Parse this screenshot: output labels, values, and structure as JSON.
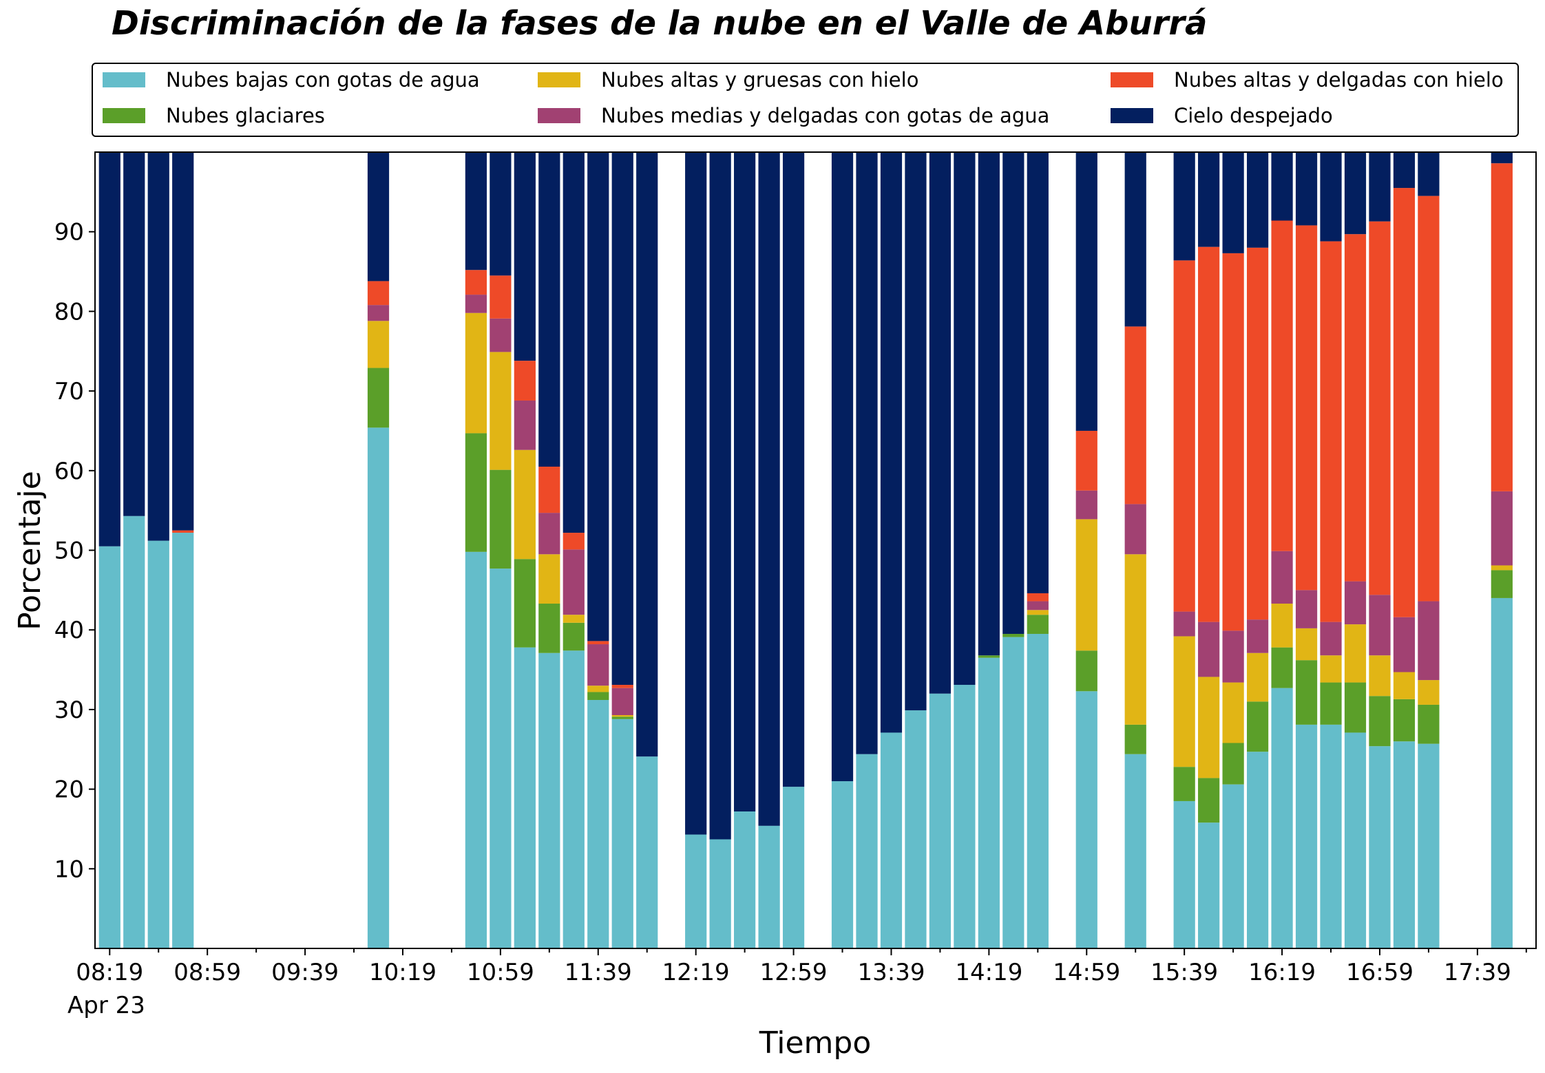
{
  "chart_data": {
    "type": "bar",
    "stacked": true,
    "title": "Discriminación de la fases de la nube en el Valle de Aburrá",
    "xlabel": "Tiempo",
    "ylabel": "Porcentaje",
    "ylim": [
      0,
      100
    ],
    "yticks": [
      10,
      20,
      30,
      40,
      50,
      60,
      70,
      80,
      90
    ],
    "xlim": [
      "08:13",
      "18:03"
    ],
    "xtick_labels": [
      "08:19",
      "08:59",
      "09:39",
      "10:19",
      "10:59",
      "11:39",
      "12:19",
      "12:59",
      "13:39",
      "14:19",
      "14:59",
      "15:39",
      "16:19",
      "16:59",
      "17:39"
    ],
    "x_date_label": "Apr 23",
    "grid": false,
    "legend_position": "top",
    "legend_columns": 3,
    "x": [
      "08:19",
      "08:29",
      "08:39",
      "08:49",
      "10:09",
      "10:49",
      "10:59",
      "11:09",
      "11:19",
      "11:29",
      "11:39",
      "11:49",
      "11:59",
      "12:19",
      "12:29",
      "12:39",
      "12:49",
      "12:59",
      "13:19",
      "13:29",
      "13:39",
      "13:49",
      "13:59",
      "14:09",
      "14:19",
      "14:29",
      "14:39",
      "14:59",
      "15:19",
      "15:39",
      "15:49",
      "15:59",
      "16:09",
      "16:19",
      "16:29",
      "16:39",
      "16:49",
      "16:59",
      "17:09",
      "17:19",
      "17:49"
    ],
    "series": [
      {
        "name": "Nubes bajas con gotas de agua",
        "color": "#64bdca",
        "values": [
          50.5,
          54.3,
          51.2,
          52.2,
          65.4,
          49.8,
          47.7,
          37.8,
          37.1,
          37.4,
          31.2,
          28.8,
          24.1,
          14.3,
          13.7,
          17.2,
          15.4,
          20.3,
          21.0,
          24.4,
          27.1,
          29.9,
          32.0,
          33.1,
          36.5,
          39.1,
          39.5,
          32.3,
          24.4,
          18.5,
          15.8,
          20.6,
          24.7,
          32.7,
          28.1,
          28.1,
          27.1,
          25.4,
          26.0,
          25.7,
          44.0
        ]
      },
      {
        "name": "Nubes glaciares",
        "color": "#5b9f29",
        "values": [
          0,
          0,
          0,
          0,
          7.5,
          14.9,
          12.4,
          11.1,
          6.2,
          3.5,
          1.0,
          0.3,
          0,
          0,
          0,
          0,
          0,
          0,
          0,
          0,
          0,
          0,
          0,
          0,
          0.3,
          0.4,
          2.4,
          5.1,
          3.7,
          4.3,
          5.6,
          5.2,
          6.3,
          5.1,
          8.1,
          5.3,
          6.3,
          6.3,
          5.3,
          4.9,
          3.5
        ]
      },
      {
        "name": "Nubes altas y gruesas con hielo",
        "color": "#e1b515",
        "values": [
          0,
          0,
          0,
          0,
          5.9,
          15.1,
          14.8,
          13.7,
          6.2,
          1.0,
          0.8,
          0.2,
          0,
          0,
          0,
          0,
          0,
          0,
          0,
          0,
          0,
          0,
          0,
          0,
          0,
          0,
          0.6,
          16.5,
          21.4,
          16.4,
          12.7,
          7.6,
          6.1,
          5.5,
          4.0,
          3.4,
          7.3,
          5.1,
          3.4,
          3.1,
          0.6
        ]
      },
      {
        "name": "Nubes medias y delgadas con gotas de agua",
        "color": "#a14172",
        "values": [
          0,
          0,
          0,
          0,
          2.0,
          2.3,
          4.2,
          6.2,
          5.2,
          8.2,
          5.2,
          3.4,
          0,
          0,
          0,
          0,
          0,
          0,
          0,
          0,
          0,
          0,
          0,
          0,
          0,
          0,
          1.1,
          3.6,
          6.3,
          3.1,
          6.9,
          6.5,
          4.2,
          6.6,
          4.8,
          4.2,
          5.4,
          7.6,
          6.9,
          9.9,
          9.3
        ]
      },
      {
        "name": "Nubes altas y delgadas con hielo",
        "color": "#ee4a28",
        "values": [
          0,
          0,
          0,
          0.3,
          3.0,
          3.1,
          5.4,
          5.0,
          5.8,
          2.1,
          0.4,
          0.4,
          0,
          0,
          0,
          0,
          0,
          0,
          0,
          0,
          0,
          0,
          0,
          0,
          0,
          0,
          1.0,
          7.5,
          22.3,
          44.1,
          47.1,
          47.4,
          46.7,
          41.5,
          45.8,
          47.8,
          43.6,
          46.9,
          53.9,
          50.9,
          41.2
        ]
      },
      {
        "name": "Cielo despejado",
        "color": "#031f5f",
        "values": [
          49.5,
          45.7,
          48.8,
          47.5,
          16.2,
          14.8,
          15.5,
          26.2,
          39.5,
          47.8,
          61.4,
          66.9,
          75.9,
          85.7,
          86.3,
          82.8,
          84.6,
          79.7,
          79.0,
          75.6,
          72.9,
          70.1,
          68.0,
          66.9,
          63.2,
          60.5,
          55.4,
          35.0,
          21.9,
          13.6,
          11.9,
          12.7,
          12.0,
          8.6,
          9.2,
          11.2,
          10.3,
          8.7,
          4.5,
          5.5,
          1.4
        ]
      }
    ]
  }
}
